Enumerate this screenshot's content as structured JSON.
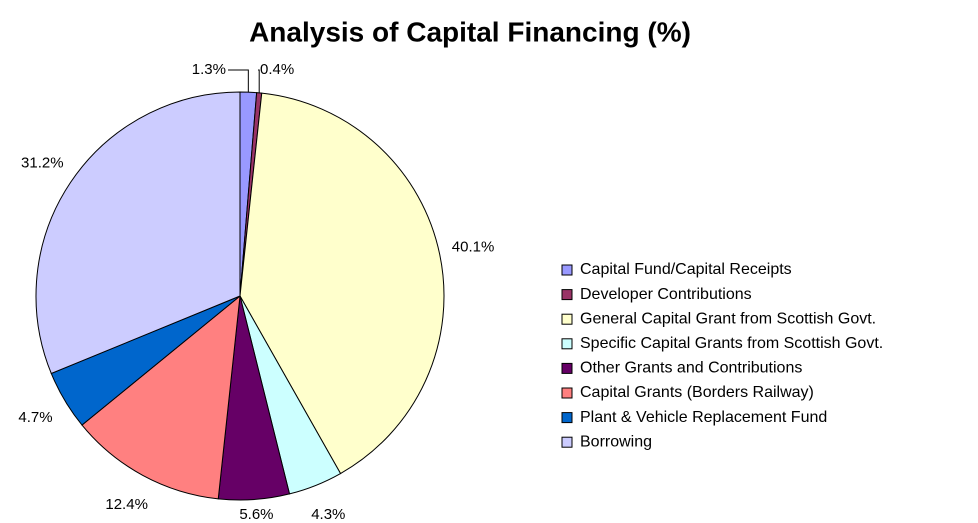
{
  "chart_data": {
    "type": "pie",
    "title": "Analysis of Capital Financing (%)",
    "categories": [
      "Capital Fund/Capital Receipts",
      "Developer Contributions",
      "General Capital Grant from Scottish Govt.",
      "Specific Capital Grants from Scottish Govt.",
      "Other Grants and Contributions",
      "Capital Grants (Borders Railway)",
      "Plant & Vehicle Replacement Fund",
      "Borrowing"
    ],
    "values": [
      1.3,
      0.4,
      40.1,
      4.3,
      5.6,
      12.4,
      4.7,
      31.2
    ],
    "value_labels": [
      "1.3%",
      "0.4%",
      "40.1%",
      "4.3%",
      "5.6%",
      "12.4%",
      "4.7%",
      "31.2%"
    ],
    "colors": [
      "#9999ff",
      "#993366",
      "#ffffcc",
      "#ccffff",
      "#660066",
      "#ff8080",
      "#0066cc",
      "#ccccff"
    ],
    "legend": "right"
  }
}
